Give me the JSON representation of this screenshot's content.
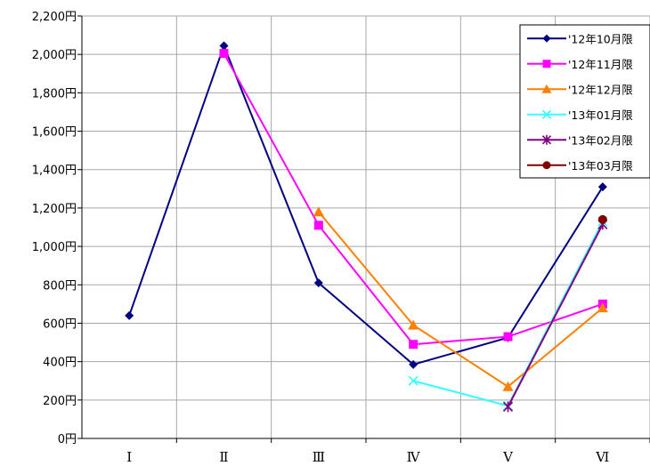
{
  "chart_data": {
    "type": "line",
    "categories": [
      "Ⅰ",
      "Ⅱ",
      "Ⅲ",
      "Ⅳ",
      "Ⅴ",
      "Ⅵ"
    ],
    "ylim": [
      0,
      2200
    ],
    "y_tick_step": 200,
    "y_unit": "円",
    "grid": true,
    "legend_position": "top-right",
    "series": [
      {
        "name": "'12年10月限",
        "color": "#000080",
        "marker": "diamond",
        "values": [
          640,
          2045,
          810,
          385,
          525,
          1310
        ]
      },
      {
        "name": "'12年11月限",
        "color": "#ff00ff",
        "marker": "square",
        "values": [
          null,
          2005,
          1110,
          490,
          530,
          700
        ]
      },
      {
        "name": "'12年12月限",
        "color": "#ff8000",
        "marker": "triangle",
        "values": [
          null,
          null,
          1180,
          590,
          270,
          680
        ]
      },
      {
        "name": "'13年01月限",
        "color": "#33ffff",
        "marker": "x",
        "values": [
          null,
          null,
          null,
          300,
          170,
          1130
        ]
      },
      {
        "name": "'13年02月限",
        "color": "#800080",
        "marker": "star",
        "values": [
          null,
          null,
          null,
          null,
          165,
          1115
        ]
      },
      {
        "name": "'13年03月限",
        "color": "#800000",
        "marker": "circle",
        "values": [
          null,
          null,
          null,
          null,
          null,
          1140
        ]
      }
    ]
  }
}
